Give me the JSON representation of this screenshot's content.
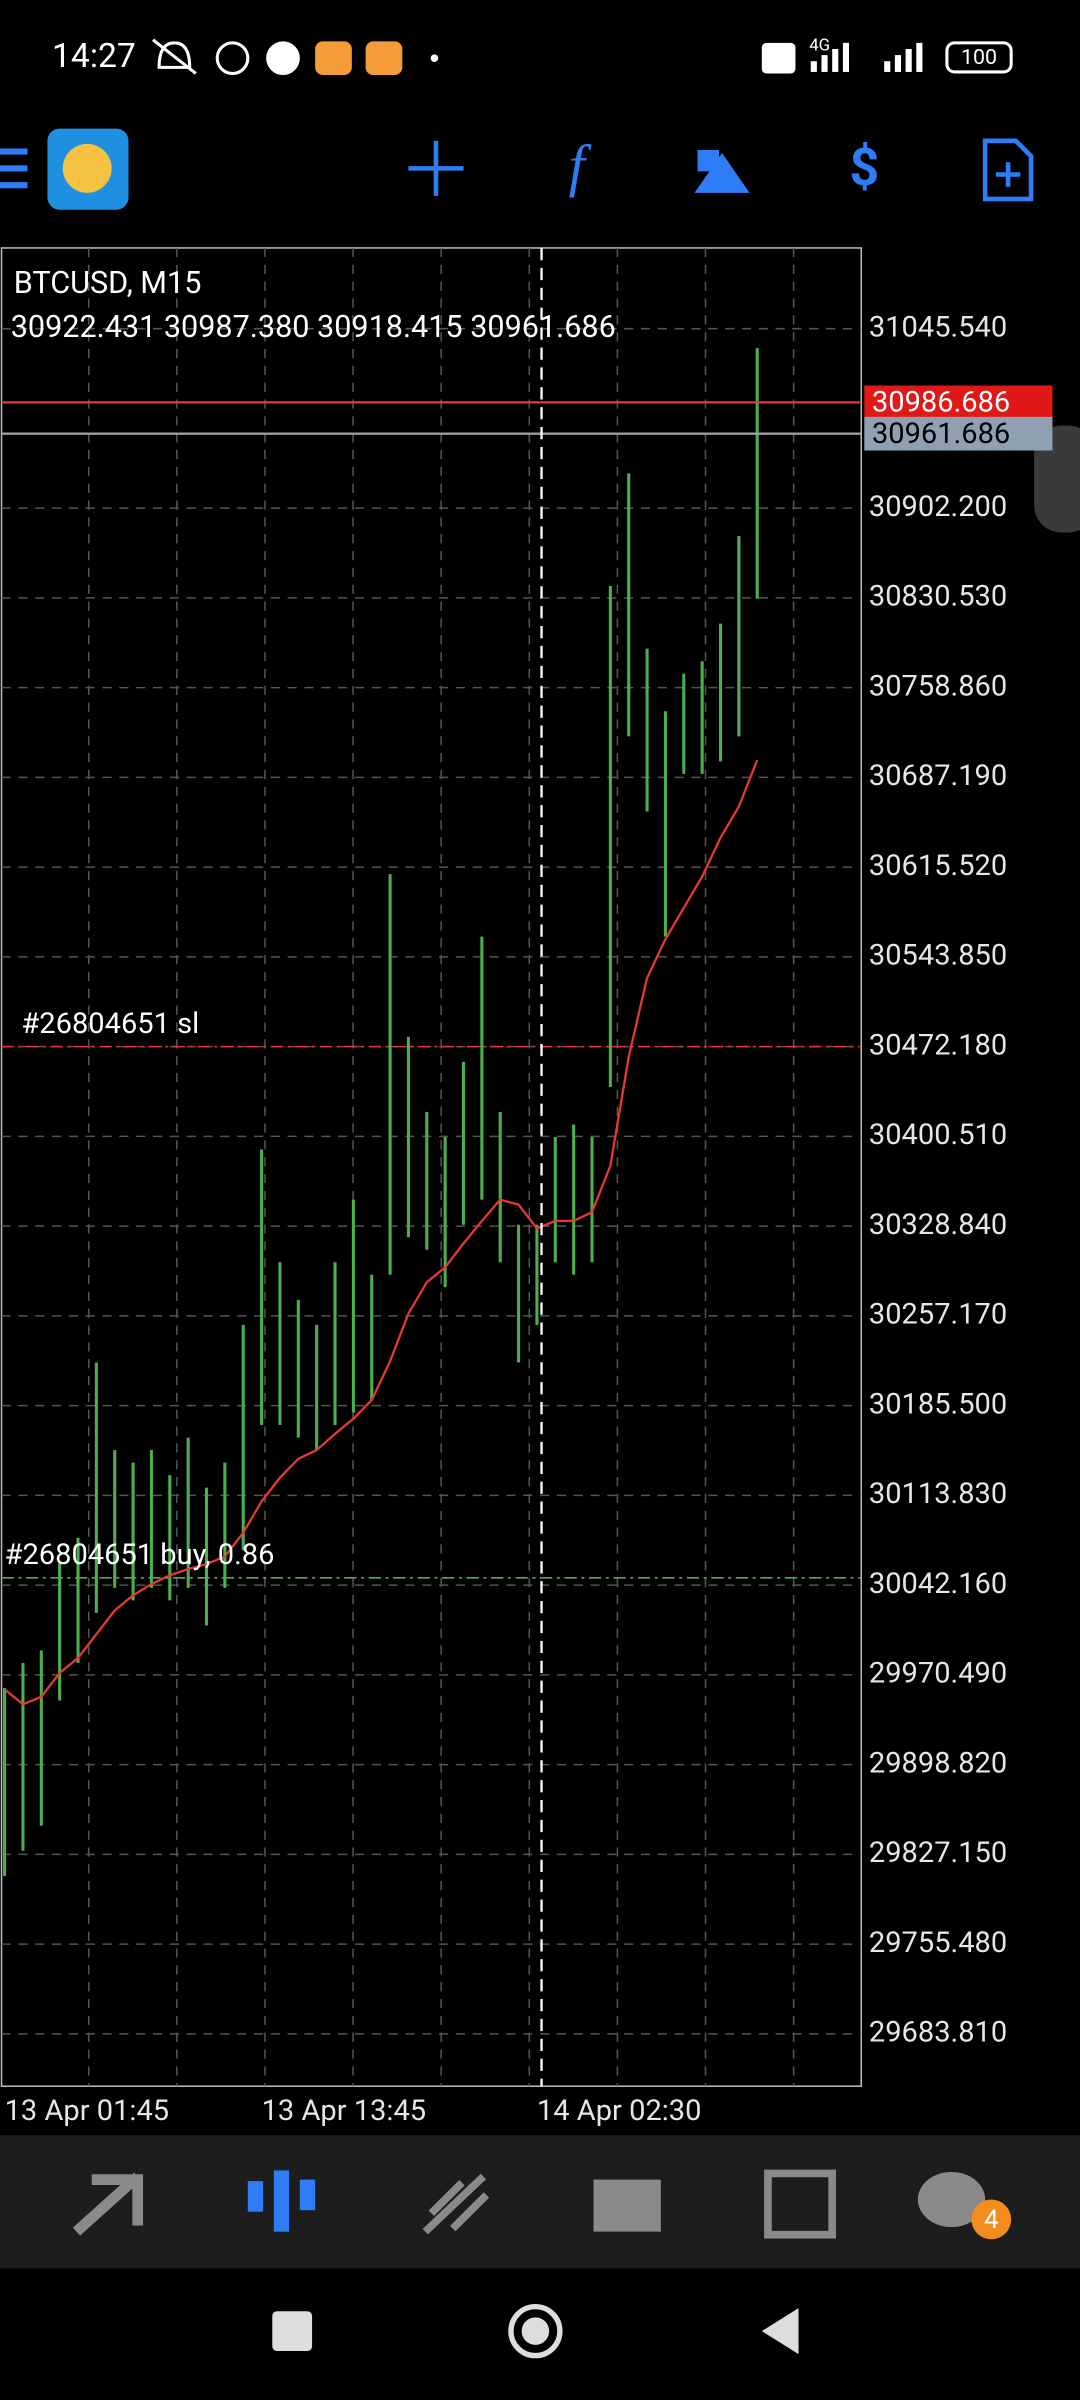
{
  "status_bar": {
    "time": "14:27",
    "network": "4G",
    "battery": "100"
  },
  "chart_data": {
    "type": "ohlc-bars",
    "title": "BTCUSD, M15",
    "info": "30922.431 30987.380 30918.415 30961.686",
    "color": "#4caf50",
    "categories": [
      "13 Apr 01:45",
      null,
      null,
      null,
      null,
      null,
      null,
      null,
      null,
      null,
      null,
      null,
      null,
      null,
      "13 Apr 13:45",
      null,
      null,
      null,
      null,
      null,
      null,
      null,
      null,
      null,
      null,
      null,
      null,
      null,
      null,
      "14 Apr 02:30",
      null,
      null,
      null,
      null,
      null,
      null,
      null,
      null,
      null,
      null,
      null,
      null
    ],
    "high": [
      29960,
      29980,
      29990,
      30060,
      30080,
      30220,
      30150,
      30140,
      30150,
      30130,
      30160,
      30120,
      30140,
      30250,
      30390,
      30300,
      30270,
      30250,
      30300,
      30350,
      30290,
      30610,
      30480,
      30420,
      30400,
      30460,
      30560,
      30420,
      30330,
      30330,
      30400,
      30410,
      30400,
      30840,
      30930,
      30790,
      30740,
      30770,
      30780,
      30810,
      30880,
      31030
    ],
    "low": [
      29810,
      29830,
      29850,
      29950,
      29980,
      30020,
      30040,
      30030,
      30040,
      30030,
      30040,
      30010,
      30040,
      30070,
      30170,
      30170,
      30160,
      30150,
      30170,
      30180,
      30190,
      30290,
      30320,
      30310,
      30280,
      30330,
      30350,
      30300,
      30220,
      30250,
      30300,
      30290,
      30300,
      30440,
      30720,
      30660,
      30560,
      30690,
      30690,
      30700,
      30720,
      30830
    ],
    "ma": {
      "color": "#e53935",
      "values": [
        29959,
        29947,
        29953,
        29972,
        29984,
        30003,
        30022,
        30034,
        30043,
        30050,
        30055,
        30059,
        30065,
        30084,
        30109,
        30128,
        30143,
        30150,
        30163,
        30175,
        30190,
        30221,
        30259,
        30284,
        30296,
        30315,
        30333,
        30350,
        30346,
        30327,
        30333,
        30333,
        30340,
        30377,
        30464,
        30527,
        30558,
        30583,
        30608,
        30639,
        30664,
        30701
      ]
    },
    "ylim": [
      29642,
      31110
    ],
    "yticks": [
      {
        "value": 31045.54,
        "label": "31045.540"
      },
      {
        "value": 30902.2,
        "label": "30902.200"
      },
      {
        "value": 30830.53,
        "label": "30830.530"
      },
      {
        "value": 30758.86,
        "label": "30758.860"
      },
      {
        "value": 30687.19,
        "label": "30687.190"
      },
      {
        "value": 30615.52,
        "label": "30615.520"
      },
      {
        "value": 30543.85,
        "label": "30543.850"
      },
      {
        "value": 30472.18,
        "label": "30472.180"
      },
      {
        "value": 30400.51,
        "label": "30400.510"
      },
      {
        "value": 30328.84,
        "label": "30328.840"
      },
      {
        "value": 30257.17,
        "label": "30257.170"
      },
      {
        "value": 30185.5,
        "label": "30185.500"
      },
      {
        "value": 30113.83,
        "label": "30113.830"
      },
      {
        "value": 30042.16,
        "label": "30042.160"
      },
      {
        "value": 29970.49,
        "label": "29970.490"
      },
      {
        "value": 29898.82,
        "label": "29898.820"
      },
      {
        "value": 29827.15,
        "label": "29827.150"
      },
      {
        "value": 29755.48,
        "label": "29755.480"
      },
      {
        "value": 29683.81,
        "label": "29683.810"
      }
    ],
    "ask": 30986.686,
    "bid": 30961.686,
    "orders": [
      {
        "label": "#26804651 sl",
        "price": 30472.18,
        "color": "#e53935"
      },
      {
        "label": "#26804651 buy, 0.86",
        "price": 30048,
        "color": "#4caf50"
      }
    ],
    "grid": true
  },
  "bottom_nav": {
    "badge": "4"
  }
}
